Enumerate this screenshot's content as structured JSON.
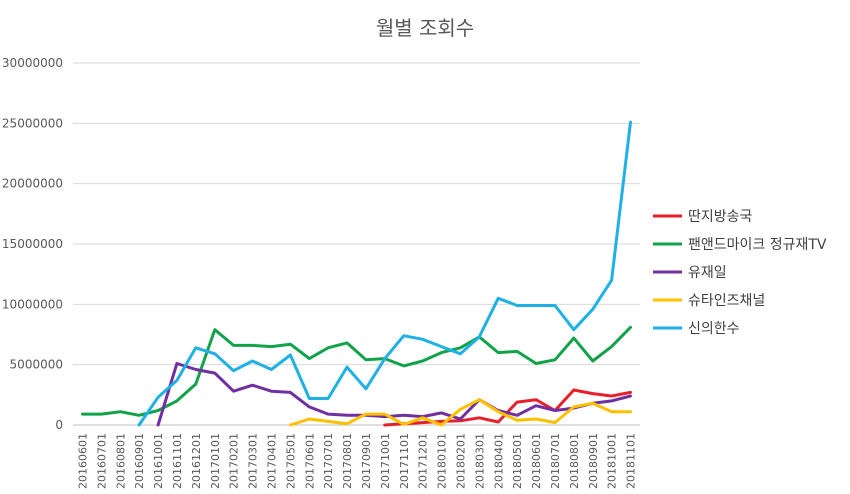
{
  "chart_data": {
    "type": "line",
    "title": "월별 조회수",
    "xlabel": "",
    "ylabel": "",
    "ylim": [
      0,
      30000000
    ],
    "yticks": [
      "0",
      "5000000",
      "10000000",
      "15000000",
      "20000000",
      "25000000",
      "30000000"
    ],
    "grid": true,
    "legend_position": "right",
    "categories": [
      "20160601",
      "20160701",
      "20160801",
      "20160901",
      "20161001",
      "20161101",
      "20161201",
      "20170101",
      "20170201",
      "20170301",
      "20170401",
      "20170501",
      "20170601",
      "20170701",
      "20170801",
      "20170901",
      "20171001",
      "20171101",
      "20171201",
      "20180101",
      "20180201",
      "20180301",
      "20180401",
      "20180501",
      "20180601",
      "20180701",
      "20180801",
      "20180901",
      "20181001",
      "20181101"
    ],
    "series": [
      {
        "name": "딴지방송국",
        "color": "#e8202a",
        "values": [
          null,
          null,
          null,
          null,
          null,
          null,
          null,
          null,
          null,
          null,
          null,
          null,
          null,
          null,
          null,
          null,
          0,
          100000,
          200000,
          300000,
          350000,
          600000,
          250000,
          1900000,
          2100000,
          1200000,
          2900000,
          2600000,
          2400000,
          2700000
        ]
      },
      {
        "name": "팬앤드마이크 정규재TV",
        "color": "#12a34a",
        "values": [
          900000,
          900000,
          1100000,
          800000,
          1200000,
          2000000,
          3400000,
          7900000,
          6600000,
          6600000,
          6500000,
          6700000,
          5500000,
          6400000,
          6800000,
          5400000,
          5500000,
          4900000,
          5300000,
          6000000,
          6400000,
          7300000,
          6000000,
          6100000,
          5100000,
          5400000,
          7200000,
          5300000,
          6500000,
          8100000
        ]
      },
      {
        "name": "유재일",
        "color": "#7030a0",
        "values": [
          null,
          null,
          null,
          null,
          0,
          5100000,
          4600000,
          4300000,
          2800000,
          3300000,
          2800000,
          2700000,
          1500000,
          900000,
          800000,
          800000,
          700000,
          800000,
          700000,
          1000000,
          500000,
          2100000,
          1200000,
          800000,
          1600000,
          1200000,
          1400000,
          1800000,
          2000000,
          2400000
        ]
      },
      {
        "name": "슈타인즈채널",
        "color": "#ffc000",
        "values": [
          null,
          null,
          null,
          null,
          null,
          null,
          null,
          null,
          null,
          null,
          null,
          0,
          500000,
          300000,
          100000,
          900000,
          900000,
          50000,
          600000,
          0,
          1300000,
          2100000,
          1100000,
          400000,
          500000,
          200000,
          1500000,
          1800000,
          1100000,
          1100000
        ]
      },
      {
        "name": "신의한수",
        "color": "#1fb1e6",
        "values": [
          null,
          null,
          null,
          0,
          2300000,
          3700000,
          6400000,
          5900000,
          4500000,
          5300000,
          4600000,
          5800000,
          2200000,
          2200000,
          4800000,
          3000000,
          5500000,
          7400000,
          7100000,
          6500000,
          5900000,
          7300000,
          10500000,
          9900000,
          9900000,
          9900000,
          7900000,
          9600000,
          12000000,
          25100000
        ]
      }
    ]
  }
}
